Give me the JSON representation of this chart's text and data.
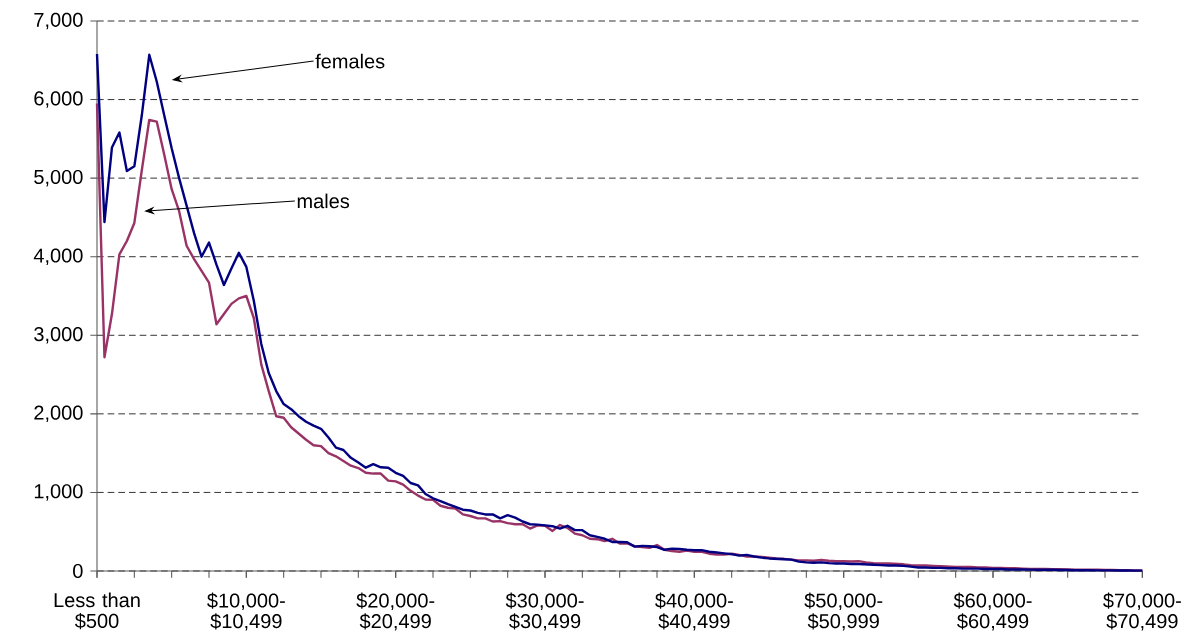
{
  "chart_data": {
    "type": "line",
    "categories": [
      "Less than $500",
      null,
      null,
      null,
      null,
      null,
      null,
      null,
      null,
      null,
      null,
      null,
      null,
      null,
      null,
      null,
      null,
      null,
      null,
      null,
      "$10,000-$10,499",
      null,
      null,
      null,
      null,
      null,
      null,
      null,
      null,
      null,
      null,
      null,
      null,
      null,
      null,
      null,
      null,
      null,
      null,
      null,
      "$20,000-$20,499",
      null,
      null,
      null,
      null,
      null,
      null,
      null,
      null,
      null,
      null,
      null,
      null,
      null,
      null,
      null,
      null,
      null,
      null,
      null,
      "$30,000-$30,499",
      null,
      null,
      null,
      null,
      null,
      null,
      null,
      null,
      null,
      null,
      null,
      null,
      null,
      null,
      null,
      null,
      null,
      null,
      null,
      "$40,000-$40,499",
      null,
      null,
      null,
      null,
      null,
      null,
      null,
      null,
      null,
      null,
      null,
      null,
      null,
      null,
      null,
      null,
      null,
      null,
      null,
      "$50,000-$50,999",
      null,
      null,
      null,
      null,
      null,
      null,
      null,
      null,
      null,
      null,
      null,
      null,
      null,
      null,
      null,
      null,
      null,
      null,
      null,
      "$60,000-$60,499",
      null,
      null,
      null,
      null,
      null,
      null,
      null,
      null,
      null,
      null,
      null,
      null,
      null,
      null,
      null,
      null,
      null,
      null,
      null,
      "$70,000-$70,499"
    ],
    "series": [
      {
        "color": "#000080",
        "values": [
          6580,
          4440,
          5390,
          5580,
          5090,
          5150,
          5800,
          6570,
          6230,
          5800,
          5380,
          5000,
          4650,
          4300,
          4000,
          4180,
          3900,
          3640,
          3850,
          4050,
          3870,
          3440,
          2890,
          2520,
          2290,
          2125,
          2060,
          1970,
          1900,
          1850,
          1810,
          1700,
          1570,
          1540,
          1440,
          1380,
          1315,
          1360,
          1320,
          1315,
          1250,
          1210,
          1120,
          1090,
          980,
          925,
          890,
          850,
          815,
          780,
          770,
          740,
          720,
          720,
          670,
          710,
          680,
          630,
          595,
          590,
          580,
          570,
          540,
          575,
          520,
          520,
          455,
          435,
          410,
          370,
          370,
          365,
          310,
          320,
          315,
          305,
          270,
          285,
          280,
          270,
          265,
          265,
          245,
          235,
          225,
          215,
          195,
          205,
          185,
          170,
          160,
          155,
          150,
          145,
          120,
          110,
          105,
          110,
          100,
          95,
          95,
          90,
          90,
          85,
          80,
          75,
          70,
          70,
          65,
          55,
          45,
          45,
          40,
          40,
          35,
          35,
          30,
          30,
          30,
          25,
          25,
          25,
          20,
          20,
          20,
          18,
          15,
          15,
          15,
          12,
          12,
          10,
          10,
          10,
          8,
          8,
          8,
          6,
          6,
          5,
          5
        ]
      },
      {
        "color": "#993366",
        "values": [
          5950,
          2720,
          3270,
          4030,
          4200,
          4430,
          5100,
          5740,
          5720,
          5300,
          4860,
          4580,
          4140,
          3970,
          3820,
          3670,
          3140,
          3270,
          3400,
          3470,
          3500,
          3220,
          2630,
          2290,
          1970,
          1950,
          1830,
          1750,
          1670,
          1600,
          1590,
          1500,
          1460,
          1400,
          1340,
          1310,
          1250,
          1240,
          1240,
          1150,
          1140,
          1100,
          1020,
          960,
          910,
          905,
          830,
          805,
          795,
          720,
          700,
          670,
          670,
          630,
          635,
          610,
          595,
          595,
          540,
          580,
          575,
          510,
          585,
          550,
          475,
          455,
          410,
          405,
          380,
          410,
          350,
          350,
          315,
          305,
          295,
          330,
          270,
          255,
          245,
          260,
          245,
          245,
          220,
          210,
          210,
          220,
          205,
          185,
          185,
          180,
          170,
          160,
          155,
          145,
          135,
          135,
          130,
          140,
          130,
          125,
          125,
          120,
          125,
          110,
          100,
          95,
          95,
          90,
          85,
          75,
          70,
          70,
          65,
          60,
          55,
          50,
          50,
          50,
          45,
          45,
          40,
          40,
          35,
          35,
          30,
          25,
          25,
          25,
          22,
          22,
          20,
          18,
          18,
          15,
          15,
          12,
          12,
          10,
          10,
          8,
          8
        ]
      }
    ],
    "ylim": [
      0,
      7000
    ],
    "yticks": [
      {
        "value": 0,
        "label": "0"
      },
      {
        "value": 1000,
        "label": "1,000"
      },
      {
        "value": 2000,
        "label": "2,000"
      },
      {
        "value": 3000,
        "label": "3,000"
      },
      {
        "value": 4000,
        "label": "4,000"
      },
      {
        "value": 5000,
        "label": "5,000"
      },
      {
        "value": 6000,
        "label": "6,000"
      },
      {
        "value": 7000,
        "label": "7,000"
      }
    ],
    "grid": "y",
    "marker": "none",
    "line_style": "solid",
    "annotations": [
      "females",
      "males"
    ]
  }
}
